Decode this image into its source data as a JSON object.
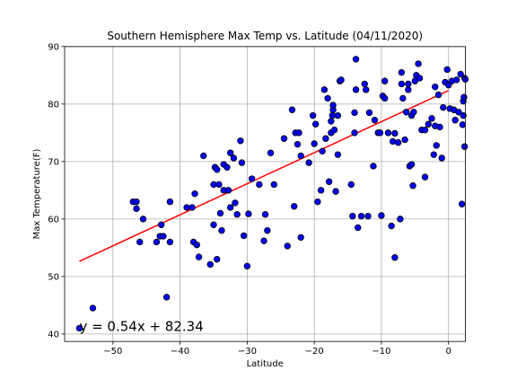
{
  "chart_data": {
    "type": "scatter",
    "title": "Southern Hemisphere Max Temp vs. Latitude (04/11/2020)",
    "xlabel": "Latitude",
    "ylabel": "Max Temperature(F)",
    "xlim": [
      -57.2,
      2.5
    ],
    "ylim": [
      38.7,
      90
    ],
    "xticks": [
      -50,
      -40,
      -30,
      -20,
      -10,
      0
    ],
    "yticks": [
      40,
      50,
      60,
      70,
      80,
      90
    ],
    "grid": true,
    "marker_color": "#0000ff",
    "marker_edge_color": "#000000",
    "line_color": "#ff0000",
    "annotation_color": "#ff0000",
    "regression": {
      "slope": 0.54,
      "intercept": 82.34,
      "x_start": -55,
      "x_end": 0
    },
    "annotation": {
      "text": "y = 0.54x + 82.34",
      "x": -55,
      "y": 40.5
    },
    "points": [
      [
        -55,
        41.0
      ],
      [
        -53,
        44.5
      ],
      [
        -47,
        63.0
      ],
      [
        -46.5,
        61.8
      ],
      [
        -46.5,
        63.0
      ],
      [
        -46,
        56.0
      ],
      [
        -45.5,
        60.0
      ],
      [
        -43.5,
        56.0
      ],
      [
        -43,
        57.0
      ],
      [
        -42.8,
        59.0
      ],
      [
        -42.5,
        57.0
      ],
      [
        -42,
        46.4
      ],
      [
        -41.5,
        63.0
      ],
      [
        -41.5,
        56.0
      ],
      [
        -39,
        62.0
      ],
      [
        -38.2,
        62.0
      ],
      [
        -38,
        56.0
      ],
      [
        -37.8,
        64.4
      ],
      [
        -37.5,
        55.5
      ],
      [
        -37.2,
        53.4
      ],
      [
        -36.5,
        71.0
      ],
      [
        -35.5,
        52.1
      ],
      [
        -35,
        66.0
      ],
      [
        -35,
        59.0
      ],
      [
        -34.8,
        69.0
      ],
      [
        -34.5,
        68.6
      ],
      [
        -34.5,
        53.0
      ],
      [
        -34.2,
        66.0
      ],
      [
        -34,
        61.0
      ],
      [
        -33.8,
        58.0
      ],
      [
        -33.5,
        65.0
      ],
      [
        -33.5,
        69.5
      ],
      [
        -33,
        69.0
      ],
      [
        -32.8,
        65.0
      ],
      [
        -32.5,
        62.0
      ],
      [
        -32.5,
        71.5
      ],
      [
        -32,
        70.6
      ],
      [
        -31.8,
        62.8
      ],
      [
        -31.5,
        60.8
      ],
      [
        -31,
        73.6
      ],
      [
        -30.8,
        69.8
      ],
      [
        -30.5,
        57.1
      ],
      [
        -30,
        51.8
      ],
      [
        -29.8,
        60.9
      ],
      [
        -29.3,
        67.0
      ],
      [
        -28.2,
        66.0
      ],
      [
        -27.5,
        56.2
      ],
      [
        -27.3,
        60.8
      ],
      [
        -27,
        58.0
      ],
      [
        -26.5,
        71.5
      ],
      [
        -26,
        66.0
      ],
      [
        -24.5,
        74.0
      ],
      [
        -24,
        55.3
      ],
      [
        -23.3,
        79.0
      ],
      [
        -23,
        62.2
      ],
      [
        -22.8,
        75.0
      ],
      [
        -22.5,
        73.0
      ],
      [
        -22.3,
        75.0
      ],
      [
        -22,
        56.8
      ],
      [
        -22,
        71.0
      ],
      [
        -20.8,
        69.8
      ],
      [
        -20.2,
        78.0
      ],
      [
        -20,
        73.1
      ],
      [
        -19.8,
        76.5
      ],
      [
        -19.5,
        63.0
      ],
      [
        -19,
        65.0
      ],
      [
        -18.8,
        71.8
      ],
      [
        -18.5,
        82.5
      ],
      [
        -18.3,
        74.0
      ],
      [
        -18,
        81.0
      ],
      [
        -17.8,
        66.5
      ],
      [
        -17.5,
        75.0
      ],
      [
        -17.5,
        77.0
      ],
      [
        -17.3,
        78.0
      ],
      [
        -17.2,
        79.0
      ],
      [
        -17.2,
        79.8
      ],
      [
        -17,
        75.5
      ],
      [
        -16.8,
        64.8
      ],
      [
        -16.5,
        78.0
      ],
      [
        -16.5,
        71.2
      ],
      [
        -16.2,
        84.0
      ],
      [
        -16,
        84.2
      ],
      [
        -14.5,
        66.0
      ],
      [
        -14.3,
        60.5
      ],
      [
        -14,
        75.0
      ],
      [
        -14,
        78.5
      ],
      [
        -13.8,
        82.5
      ],
      [
        -13.8,
        87.8
      ],
      [
        -13.5,
        58.5
      ],
      [
        -13,
        60.5
      ],
      [
        -12.5,
        83.5
      ],
      [
        -12.3,
        82.5
      ],
      [
        -12,
        60.5
      ],
      [
        -11.8,
        78.5
      ],
      [
        -11.2,
        69.2
      ],
      [
        -11,
        77.2
      ],
      [
        -10.5,
        75.0
      ],
      [
        -10.2,
        75.0
      ],
      [
        -10,
        60.6
      ],
      [
        -9.8,
        81.4
      ],
      [
        -9.5,
        81.0
      ],
      [
        -9.5,
        84.0
      ],
      [
        -9,
        75.0
      ],
      [
        -8.5,
        58.8
      ],
      [
        -8.3,
        73.5
      ],
      [
        -8,
        74.9
      ],
      [
        -8,
        53.3
      ],
      [
        -7.5,
        73.3
      ],
      [
        -7.2,
        60.0
      ],
      [
        -7,
        83.5
      ],
      [
        -7,
        85.5
      ],
      [
        -6.8,
        81.0
      ],
      [
        -6.5,
        73.8
      ],
      [
        -6.3,
        78.6
      ],
      [
        -6,
        82.5
      ],
      [
        -6,
        83.5
      ],
      [
        -5.8,
        69.2
      ],
      [
        -5.5,
        69.5
      ],
      [
        -5.5,
        78.0
      ],
      [
        -5.3,
        65.8
      ],
      [
        -5.2,
        78.6
      ],
      [
        -5,
        84.0
      ],
      [
        -4.8,
        85.0
      ],
      [
        -4.5,
        87.0
      ],
      [
        -4.3,
        84.5
      ],
      [
        -4,
        75.5
      ],
      [
        -3.5,
        67.3
      ],
      [
        -3.5,
        75.5
      ],
      [
        -3,
        76.5
      ],
      [
        -2.5,
        77.5
      ],
      [
        -2.2,
        71.2
      ],
      [
        -2,
        83.0
      ],
      [
        -2,
        76.2
      ],
      [
        -1.8,
        72.8
      ],
      [
        -1.5,
        81.6
      ],
      [
        -1.3,
        76.0
      ],
      [
        -1,
        70.6
      ],
      [
        -0.8,
        79.4
      ],
      [
        -0.5,
        83.8
      ],
      [
        -0.2,
        86.0
      ],
      [
        0,
        83.3
      ],
      [
        0.2,
        79.2
      ],
      [
        0.5,
        84.0
      ],
      [
        0.8,
        79.0
      ],
      [
        1.0,
        77.2
      ],
      [
        1.2,
        84.2
      ],
      [
        1.5,
        78.6
      ],
      [
        1.8,
        85.2
      ],
      [
        2.0,
        62.6
      ],
      [
        2.1,
        76.4
      ],
      [
        2.2,
        80.5
      ],
      [
        2.3,
        81.2
      ],
      [
        2.4,
        84.5
      ],
      [
        2.5,
        84.3
      ],
      [
        2.2,
        78.0
      ],
      [
        2.4,
        72.6
      ]
    ]
  }
}
